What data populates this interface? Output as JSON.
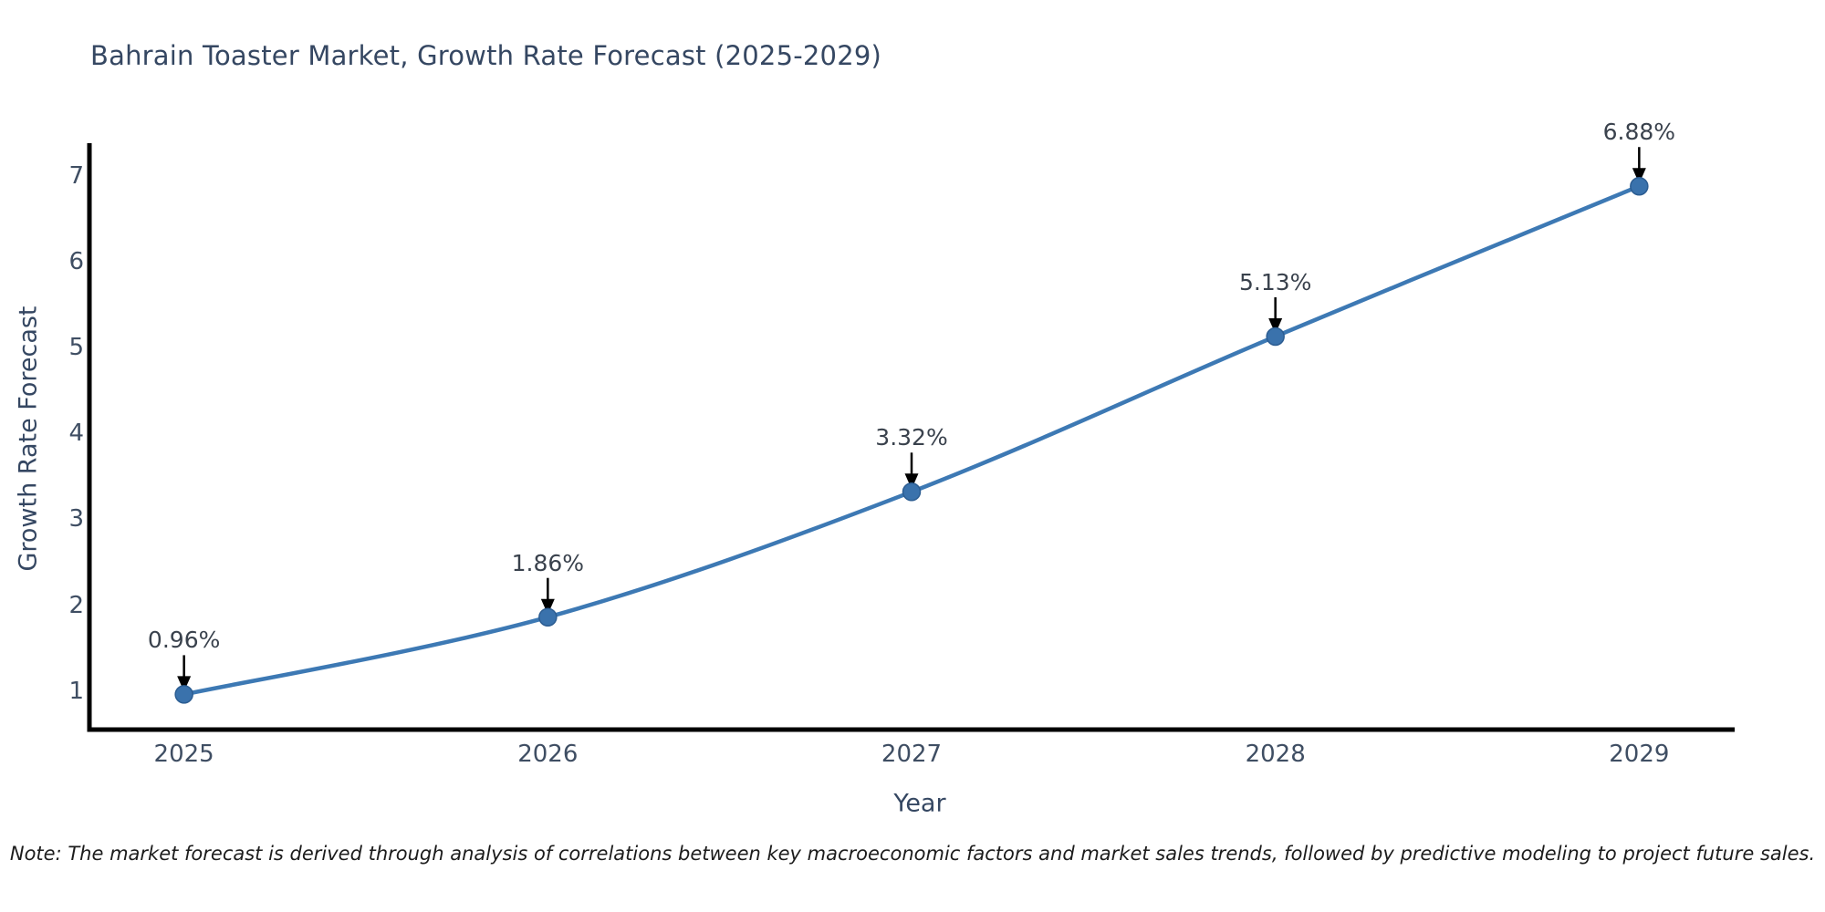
{
  "chart": {
    "title": "Bahrain Toaster Market, Growth Rate Forecast (2025-2029)",
    "xlabel": "Year",
    "ylabel": "Growth Rate Forecast",
    "note": "Note: The market forecast is derived through analysis of correlations between key macroeconomic factors and market sales trends, followed by predictive modeling to project future sales."
  },
  "chart_data": {
    "type": "line",
    "title": "Bahrain Toaster Market, Growth Rate Forecast (2025-2029)",
    "xlabel": "Year",
    "ylabel": "Growth Rate Forecast",
    "x": [
      2025,
      2026,
      2027,
      2028,
      2029
    ],
    "series": [
      {
        "name": "Growth Rate Forecast",
        "values": [
          0.96,
          1.86,
          3.32,
          5.13,
          6.88
        ]
      }
    ],
    "point_labels": [
      "0.96%",
      "1.86%",
      "3.32%",
      "5.13%",
      "6.88%"
    ],
    "xticks": [
      "2025",
      "2026",
      "2027",
      "2028",
      "2029"
    ],
    "yticks": [
      "1",
      "2",
      "3",
      "4",
      "5",
      "6",
      "7"
    ],
    "xlim": [
      2024.74,
      2029.26
    ],
    "ylim": [
      0.55,
      7.35
    ],
    "grid": false,
    "legend_position": "none",
    "line_smoothing": true,
    "annotation_style": "arrow-down-to-point",
    "colors": {
      "line": "#3d79b4",
      "marker_fill": "#3a72ac",
      "marker_edge": "#2c5d92",
      "arrow": "#000000",
      "axis": "#000000",
      "title_text": "#354762",
      "tick_text": "#3f4e63",
      "annotation_text": "#3a424d",
      "note_text": "#1c1c1c",
      "background": "#ffffff"
    }
  }
}
